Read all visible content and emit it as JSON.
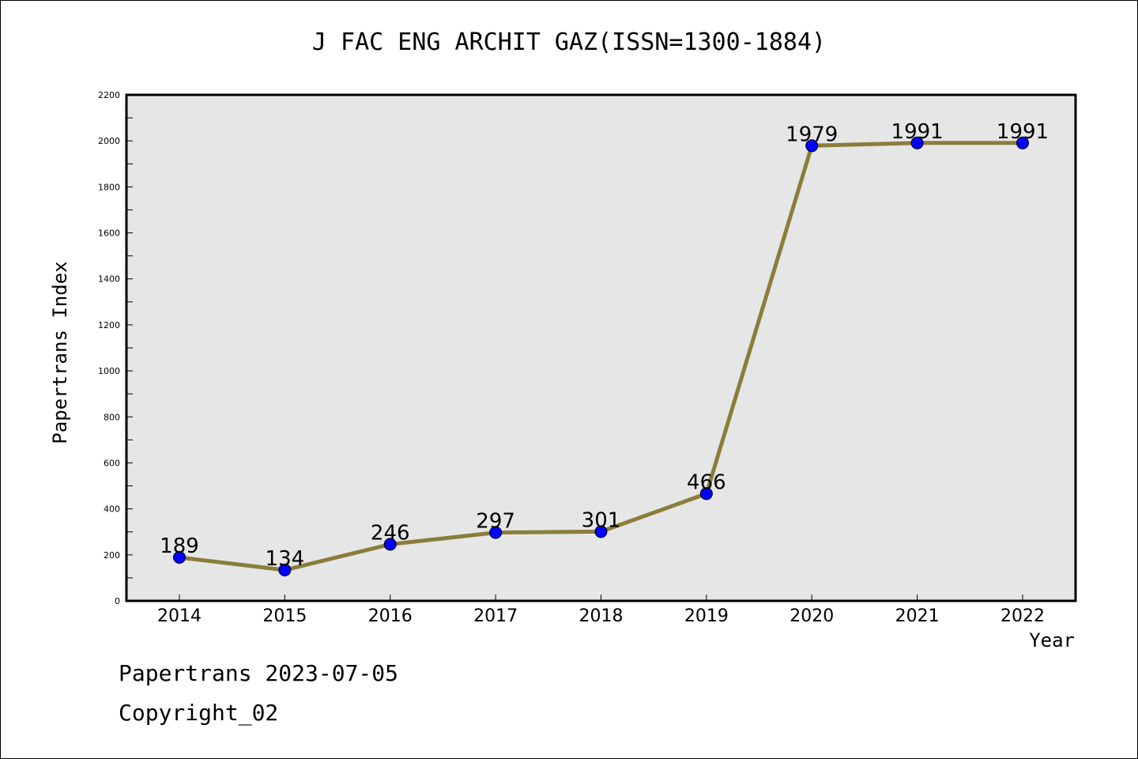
{
  "chart_data": {
    "type": "line",
    "title": "J FAC ENG ARCHIT GAZ(ISSN=1300-1884)",
    "xlabel": "Year",
    "ylabel": "Papertrans Index",
    "categories": [
      "2014",
      "2015",
      "2016",
      "2017",
      "2018",
      "2019",
      "2020",
      "2021",
      "2022"
    ],
    "series": [
      {
        "values": [
          189,
          134,
          246,
          297,
          301,
          466,
          1979,
          1991,
          1991
        ]
      }
    ],
    "data_labels": [
      "189",
      "134",
      "246",
      "297",
      "301",
      "466",
      "1979",
      "1991",
      "1991"
    ],
    "ylim": [
      0,
      2200
    ],
    "yticks": [
      "0",
      "200",
      "400",
      "600",
      "800",
      "1000",
      "1200",
      "1400",
      "1600",
      "1800",
      "2000",
      "2200"
    ],
    "grid": false,
    "plot_background": "#e6e6e6",
    "line_color": "#8b7d3a",
    "marker_color": "#0000ff"
  },
  "footer": {
    "source": "Papertrans 2023-07-05",
    "copyright": "Copyright_02"
  }
}
